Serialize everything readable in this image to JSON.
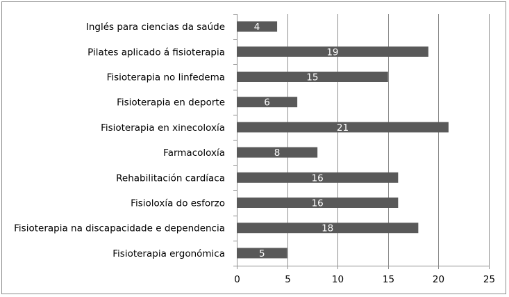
{
  "chart_data": {
    "type": "bar",
    "orientation": "horizontal",
    "categories": [
      "Inglés para ciencias da saúde",
      "Pilates aplicado á fisioterapia",
      "Fisioterapia no linfedema",
      "Fisioterapia en deporte",
      "Fisioterapia en xinecoloxía",
      "Farmacoloxía",
      "Rehabilitación cardíaca",
      "Fisioloxía do esforzo",
      "Fisioterapia na discapacidade e dependencia",
      "Fisioterapia ergonómica"
    ],
    "values": [
      4,
      19,
      15,
      6,
      21,
      8,
      16,
      16,
      18,
      5
    ],
    "data_labels": [
      "4",
      "19",
      "15",
      "6",
      "21",
      "8",
      "16",
      "16",
      "18",
      "5"
    ],
    "xticks": [
      "0",
      "5",
      "10",
      "15",
      "20",
      "25"
    ],
    "xlim": [
      0,
      25
    ],
    "grid": "vertical",
    "legend": "none",
    "colors": {
      "bar": "#595959",
      "grid": "#8c8c8c",
      "axis": "#8c8c8c"
    }
  }
}
